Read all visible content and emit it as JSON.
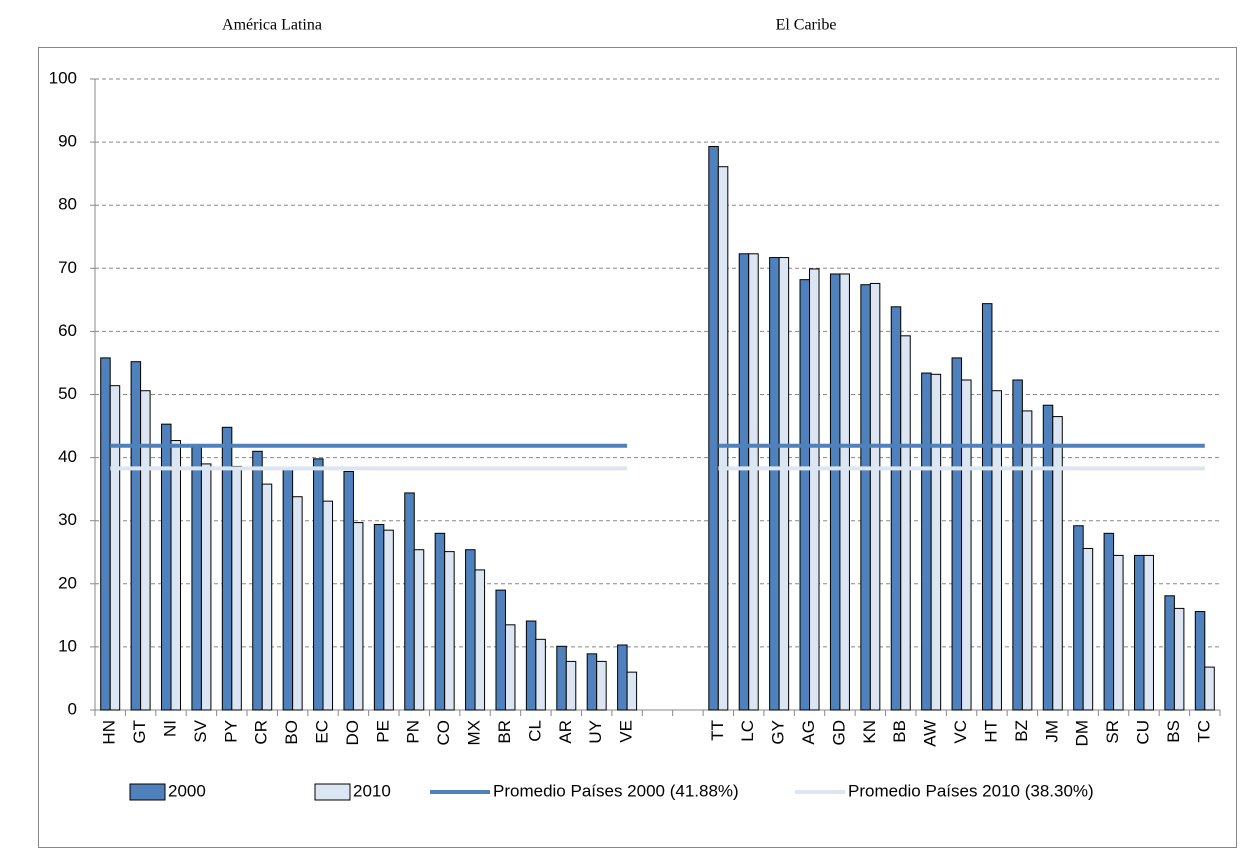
{
  "chart_data": {
    "type": "bar",
    "group_labels": [
      "América Latina",
      "El Caribe"
    ],
    "categories": [
      "HN",
      "GT",
      "NI",
      "SV",
      "PY",
      "CR",
      "BO",
      "EC",
      "DO",
      "PE",
      "PN",
      "CO",
      "MX",
      "BR",
      "CL",
      "AR",
      "UY",
      "VE",
      null,
      null,
      "TT",
      "LC",
      "GY",
      "AG",
      "GD",
      "KN",
      "BB",
      "AW",
      "VC",
      "HT",
      "BZ",
      "JM",
      "DM",
      "SR",
      "CU",
      "BS",
      "TC"
    ],
    "series": [
      {
        "name": "2000",
        "type": "bar",
        "color": "#4f81bd",
        "values": [
          55.8,
          55.2,
          45.3,
          41.8,
          44.8,
          41.0,
          38.5,
          39.8,
          37.8,
          29.4,
          34.4,
          28.0,
          25.4,
          19.0,
          14.1,
          10.1,
          8.9,
          10.3,
          null,
          null,
          89.3,
          72.3,
          71.7,
          68.2,
          69.1,
          67.4,
          63.9,
          53.4,
          55.8,
          64.4,
          52.3,
          48.3,
          29.2,
          28.0,
          24.5,
          18.1,
          15.6
        ]
      },
      {
        "name": "2010",
        "type": "bar",
        "color": "#dce6f2",
        "values": [
          51.4,
          50.6,
          42.7,
          39.0,
          38.6,
          35.8,
          33.8,
          33.1,
          29.7,
          28.5,
          25.4,
          25.1,
          22.2,
          13.5,
          11.2,
          7.7,
          7.7,
          6.0,
          null,
          null,
          86.1,
          72.3,
          71.7,
          69.9,
          69.1,
          67.6,
          59.3,
          53.2,
          52.3,
          50.6,
          47.4,
          46.5,
          25.6,
          24.5,
          24.5,
          16.1,
          6.8
        ]
      },
      {
        "name": "Promedio Países 2000 (41.88%)",
        "type": "line",
        "color": "#4f81bd",
        "values": [
          41.88,
          41.88,
          41.88,
          41.88,
          41.88,
          41.88,
          41.88,
          41.88,
          41.88,
          41.88,
          41.88,
          41.88,
          41.88,
          41.88,
          41.88,
          41.88,
          41.88,
          41.88,
          null,
          null,
          41.88,
          41.88,
          41.88,
          41.88,
          41.88,
          41.88,
          41.88,
          41.88,
          41.88,
          41.88,
          41.88,
          41.88,
          41.88,
          41.88,
          41.88,
          41.88,
          41.88
        ]
      },
      {
        "name": "Promedio Países 2010 (38.30%)",
        "type": "line",
        "color": "#dce6f2",
        "values": [
          38.3,
          38.3,
          38.3,
          38.3,
          38.3,
          38.3,
          38.3,
          38.3,
          38.3,
          38.3,
          38.3,
          38.3,
          38.3,
          38.3,
          38.3,
          38.3,
          38.3,
          38.3,
          null,
          null,
          38.3,
          38.3,
          38.3,
          38.3,
          38.3,
          38.3,
          38.3,
          38.3,
          38.3,
          38.3,
          38.3,
          38.3,
          38.3,
          38.3,
          38.3,
          38.3,
          38.3
        ]
      }
    ],
    "ylim": [
      0,
      100
    ],
    "yticks": [
      0,
      10,
      20,
      30,
      40,
      50,
      60,
      70,
      80,
      90,
      100
    ],
    "grid": true,
    "legend": "bottom"
  }
}
